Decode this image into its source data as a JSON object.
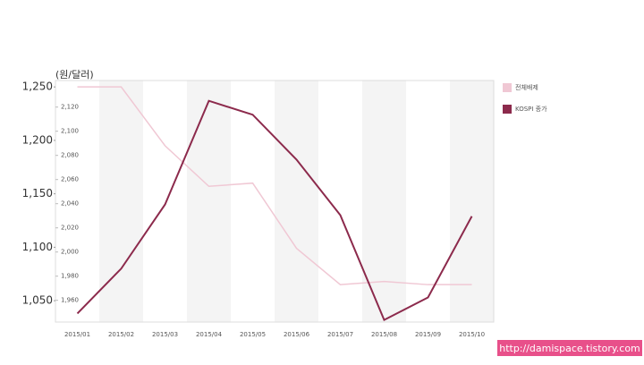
{
  "chart_data": {
    "type": "line",
    "y_label": "(원/달러)",
    "categories": [
      "2015/01",
      "2015/02",
      "2015/03",
      "2015/04",
      "2015/05",
      "2015/06",
      "2015/07",
      "2015/08",
      "2015/09",
      "2015/10"
    ],
    "series": [
      {
        "name": "전체배제",
        "color": "#f0c8d4",
        "values": [
          1250,
          1250,
          1195,
          1157,
          1160,
          1099,
          1065,
          1068,
          1065,
          1065
        ]
      },
      {
        "name": "KOSPI 종가",
        "color": "#8c2a4c",
        "values": [
          1038,
          1080,
          1140,
          1237,
          1224,
          1182,
          1130,
          1032,
          1053,
          1129
        ]
      }
    ],
    "ylim": [
      1030,
      1256
    ],
    "yticks": [
      {
        "value": 1050,
        "label": "1,050"
      },
      {
        "value": 1100,
        "label": "1,100"
      },
      {
        "value": 1150,
        "label": "1,150"
      },
      {
        "value": 1200,
        "label": "1,200"
      },
      {
        "value": 1250,
        "label": "1,250"
      }
    ],
    "y2lim": [
      1942,
      2142
    ],
    "y2ticks": [
      {
        "value": 1960,
        "label": "1,960"
      },
      {
        "value": 1980,
        "label": "1,980"
      },
      {
        "value": 2000,
        "label": "2,000"
      },
      {
        "value": 2020,
        "label": "2,020"
      },
      {
        "value": 2040,
        "label": "2,040"
      },
      {
        "value": 2060,
        "label": "2,060"
      },
      {
        "value": 2080,
        "label": "2,080"
      },
      {
        "value": 2100,
        "label": "2,100"
      },
      {
        "value": 2120,
        "label": "2,120"
      }
    ],
    "watermark": "http://damispace.tistory.com"
  }
}
